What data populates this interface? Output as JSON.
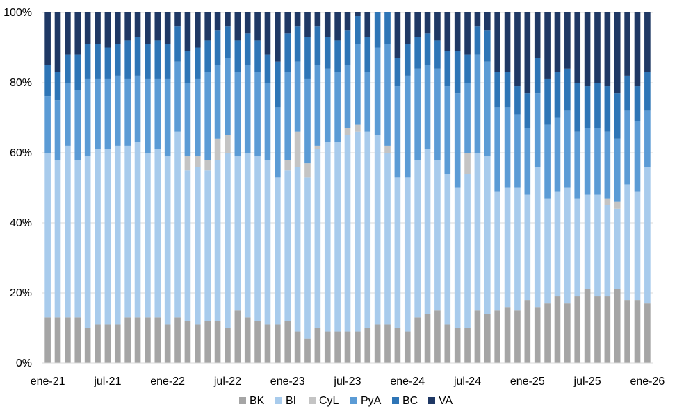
{
  "chart_data": {
    "type": "bar",
    "stacked": true,
    "percent_stacked": true,
    "x": [
      "ene-21",
      "feb-21",
      "mar-21",
      "abr-21",
      "may-21",
      "jun-21",
      "jul-21",
      "ago-21",
      "sep-21",
      "oct-21",
      "nov-21",
      "dic-21",
      "ene-22",
      "feb-22",
      "mar-22",
      "abr-22",
      "may-22",
      "jun-22",
      "jul-22",
      "ago-22",
      "sep-22",
      "oct-22",
      "nov-22",
      "dic-22",
      "ene-23",
      "feb-23",
      "mar-23",
      "abr-23",
      "may-23",
      "jun-23",
      "jul-23",
      "ago-23",
      "sep-23",
      "oct-23",
      "nov-23",
      "dic-23",
      "ene-24",
      "feb-24",
      "mar-24",
      "abr-24",
      "may-24",
      "jun-24",
      "jul-24",
      "ago-24",
      "sep-24",
      "oct-24",
      "nov-24",
      "dic-24",
      "ene-25",
      "feb-25",
      "mar-25",
      "abr-25",
      "may-25",
      "jun-25",
      "jul-25",
      "ago-25",
      "sep-25",
      "oct-25",
      "nov-25",
      "dic-25",
      "ene-26"
    ],
    "x_tick_labels": [
      "ene-21",
      "jul-21",
      "ene-22",
      "jul-22",
      "ene-23",
      "jul-23",
      "ene-24",
      "jul-24",
      "ene-25",
      "jul-25",
      "ene-26"
    ],
    "x_tick_every": 6,
    "ylim": [
      0,
      100
    ],
    "y_ticks": [
      "0%",
      "20%",
      "40%",
      "60%",
      "80%",
      "100%"
    ],
    "grid": true,
    "legend_position": "bottom",
    "series": [
      {
        "name": "BK",
        "color": "#a5a5a5",
        "values": [
          13,
          13,
          13,
          13,
          10,
          11,
          11,
          11,
          13,
          13,
          13,
          13,
          11,
          13,
          12,
          11,
          12,
          12,
          10,
          15,
          13,
          12,
          11,
          11,
          12,
          9,
          7,
          10,
          9,
          9,
          9,
          9,
          10,
          11,
          11,
          10,
          9,
          13,
          14,
          15,
          11,
          10,
          10,
          15,
          14,
          15,
          16,
          15,
          18,
          16,
          17,
          19,
          17,
          19,
          21,
          19,
          19,
          21,
          18,
          18,
          17
        ]
      },
      {
        "name": "BI",
        "color": "#a8cbec",
        "values": [
          47,
          45,
          49,
          45,
          49,
          50,
          50,
          51,
          49,
          50,
          47,
          48,
          48,
          53,
          43,
          45,
          43,
          46,
          50,
          44,
          47,
          47,
          47,
          42,
          43,
          47,
          46,
          51,
          54,
          54,
          56,
          57,
          56,
          54,
          49,
          43,
          44,
          45,
          47,
          43,
          43,
          40,
          44,
          45,
          45,
          34,
          34,
          35,
          30,
          40,
          30,
          30,
          33,
          28,
          27,
          29,
          26,
          23,
          33,
          31,
          39
        ]
      },
      {
        "name": "CyL",
        "color": "#c4c4c4",
        "values": [
          0,
          0,
          0,
          0,
          0,
          0,
          0,
          0,
          0,
          0,
          0,
          0,
          0,
          0,
          4,
          3,
          3,
          6,
          5,
          0,
          0,
          0,
          0,
          0,
          3,
          10,
          4,
          1,
          0,
          0,
          2,
          2,
          0,
          0,
          2,
          0,
          0,
          0,
          0,
          0,
          0,
          0,
          6,
          0,
          0,
          0,
          0,
          0,
          0,
          0,
          0,
          0,
          0,
          0,
          0,
          0,
          2,
          2,
          0,
          0,
          0
        ]
      },
      {
        "name": "PyA",
        "color": "#5b9bd5",
        "values": [
          16,
          17,
          18,
          20,
          22,
          20,
          20,
          20,
          19,
          19,
          21,
          20,
          22,
          20,
          21,
          22,
          25,
          21,
          22,
          24,
          25,
          24,
          22,
          20,
          25,
          20,
          24,
          23,
          21,
          20,
          18,
          23,
          17,
          25,
          29,
          26,
          29,
          26,
          24,
          26,
          25,
          27,
          20,
          28,
          27,
          24,
          23,
          21,
          19,
          21,
          21,
          21,
          22,
          19,
          19,
          19,
          19,
          18,
          21,
          20,
          16
        ]
      },
      {
        "name": "BC",
        "color": "#2e75b6",
        "values": [
          9,
          8,
          8,
          10,
          10,
          10,
          9,
          9,
          11,
          11,
          10,
          11,
          10,
          10,
          9,
          9,
          9,
          10,
          9,
          9,
          9,
          9,
          8,
          13,
          11,
          10,
          12,
          11,
          9,
          9,
          10,
          8,
          10,
          10,
          9,
          8,
          9,
          9,
          9,
          8,
          10,
          12,
          8,
          8,
          9,
          10,
          10,
          8,
          10,
          10,
          13,
          13,
          12,
          14,
          12,
          13,
          13,
          13,
          10,
          10,
          11
        ]
      },
      {
        "name": "VA",
        "color": "#1f3864",
        "values": [
          15,
          17,
          12,
          12,
          9,
          9,
          10,
          9,
          8,
          7,
          9,
          8,
          9,
          4,
          11,
          10,
          8,
          5,
          4,
          8,
          6,
          8,
          12,
          14,
          6,
          4,
          7,
          4,
          7,
          8,
          5,
          1,
          7,
          0,
          0,
          13,
          9,
          7,
          6,
          8,
          11,
          11,
          12,
          4,
          5,
          17,
          17,
          21,
          23,
          13,
          19,
          17,
          16,
          20,
          21,
          20,
          21,
          23,
          18,
          21,
          17
        ]
      }
    ]
  }
}
